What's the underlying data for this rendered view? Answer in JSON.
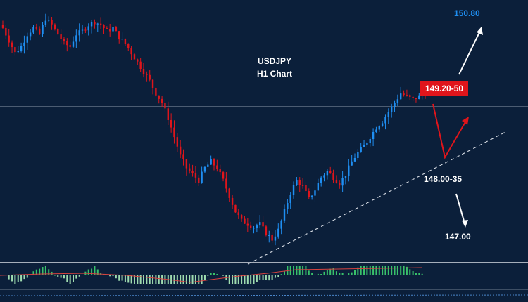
{
  "chart_data": {
    "type": "candlestick",
    "title": "USDJPY",
    "subtitle": "H1 Chart",
    "ylim": [
      146.8,
      151.0
    ],
    "colors": {
      "background": "#0b1f3a",
      "up": "#1f8ef1",
      "down": "#e0151b",
      "osc_up": "#39c26b",
      "osc_down": "#9fdcb0",
      "target": "#1f8ef1",
      "resistance_badge": "#e0151b",
      "trendline": "#d9dee6",
      "horizontal_line": "#b9c2cf",
      "arrow_up": "#ffffff",
      "arrow_down": "#ffffff",
      "arrow_red": "#e0151b"
    },
    "price_path": [
      150.55,
      150.35,
      150.15,
      150.25,
      150.45,
      150.55,
      150.45,
      150.7,
      150.6,
      150.45,
      150.3,
      150.25,
      150.45,
      150.5,
      150.6,
      150.65,
      150.6,
      150.5,
      150.55,
      150.4,
      150.3,
      150.15,
      150.0,
      149.85,
      149.7,
      149.5,
      149.35,
      149.1,
      148.8,
      148.5,
      148.3,
      148.2,
      148.1,
      148.3,
      148.4,
      148.3,
      148.1,
      147.85,
      147.6,
      147.45,
      147.4,
      147.35,
      147.4,
      147.25,
      147.15,
      147.3,
      147.6,
      147.9,
      148.1,
      148.0,
      147.8,
      147.95,
      148.15,
      148.25,
      148.15,
      148.05,
      148.2,
      148.4,
      148.55,
      148.65,
      148.8,
      148.95,
      149.05,
      149.2,
      149.35,
      149.5,
      149.45,
      149.4,
      149.45,
      149.5
    ],
    "levels": {
      "horizontal": 149.5,
      "resistance_zone": "149.20-50",
      "support_zone": "148.00-35",
      "target_up": "150.80",
      "target_down": "147.00"
    },
    "trendline": {
      "from": {
        "bar": 49,
        "price": 147.1
      },
      "to": {
        "bar": 95,
        "price": 148.7
      }
    }
  }
}
